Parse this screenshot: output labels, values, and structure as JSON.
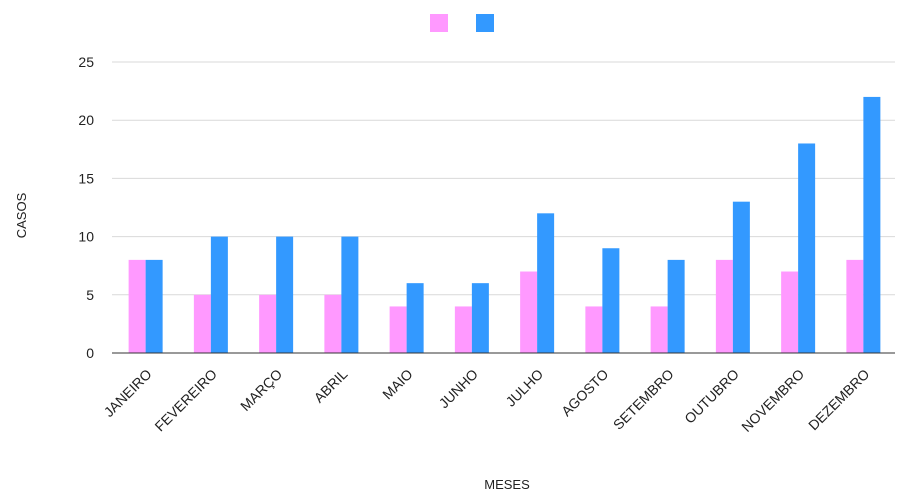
{
  "chart_data": {
    "type": "bar",
    "title": "",
    "xlabel": "MESES",
    "ylabel": "CASOS",
    "categories": [
      "JANEIRO",
      "FEVEREIRO",
      "MARÇO",
      "ABRIL",
      "MAIO",
      "JUNHO",
      "JULHO",
      "AGOSTO",
      "SETEMBRO",
      "OUTUBRO",
      "NOVEMBRO",
      "DEZEMBRO"
    ],
    "series": [
      {
        "color": "#ff99ff",
        "values": [
          8,
          5,
          5,
          5,
          4,
          4,
          7,
          4,
          4,
          8,
          7,
          8
        ]
      },
      {
        "color": "#3399ff",
        "values": [
          8,
          10,
          10,
          10,
          6,
          6,
          12,
          9,
          8,
          13,
          18,
          22
        ]
      }
    ],
    "ylim": [
      0,
      25
    ],
    "yticks": [
      0,
      5,
      10,
      15,
      20,
      25
    ],
    "grid": true,
    "legend_position": "top"
  }
}
